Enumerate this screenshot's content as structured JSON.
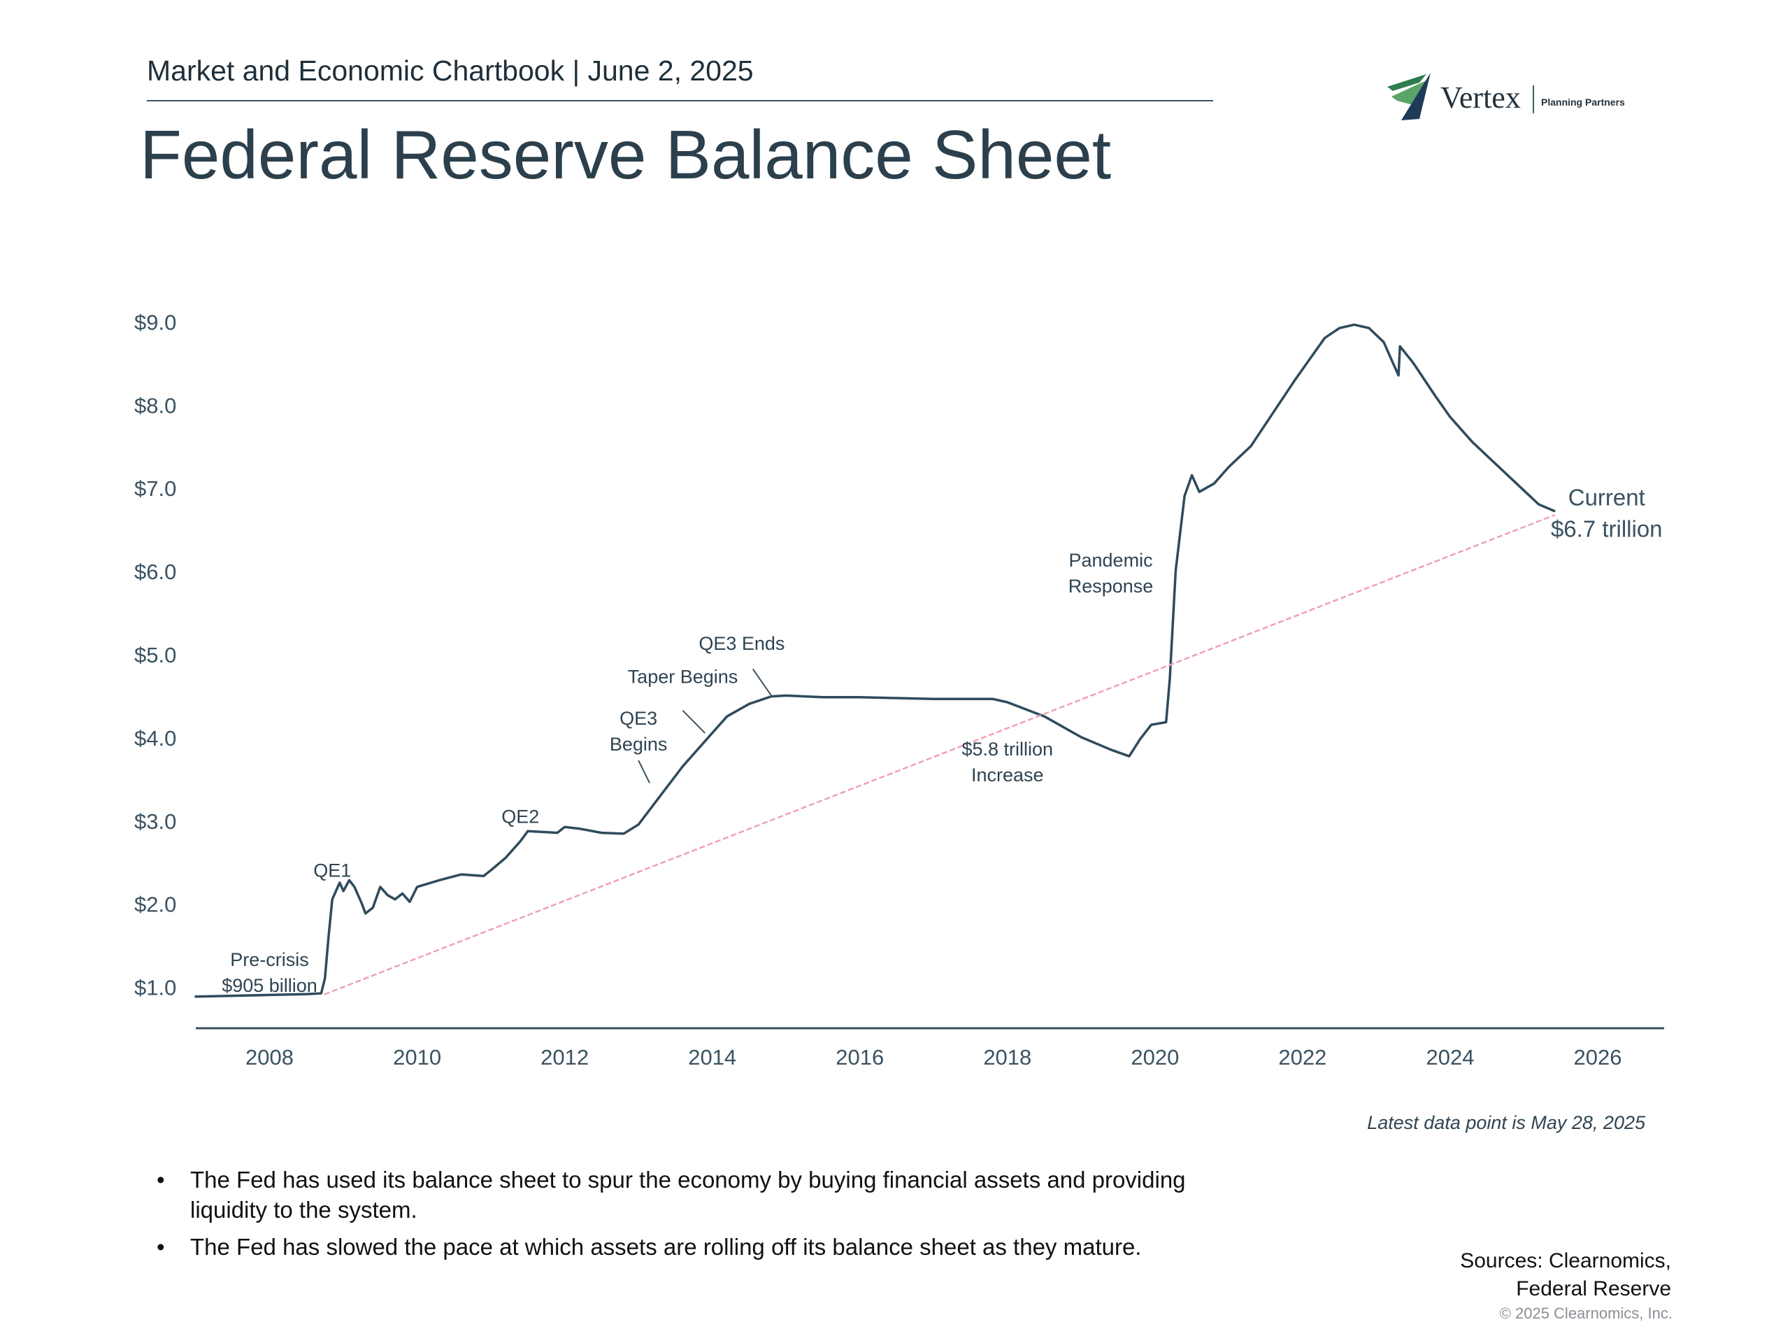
{
  "header": {
    "kicker": "Market and Economic Chartbook | June 2, 2025",
    "title": "Federal Reserve Balance Sheet"
  },
  "logo": {
    "word": "Vertex",
    "sub": "Planning Partners",
    "colors": [
      "#2e7d4f",
      "#5aa469",
      "#1f3b5a"
    ]
  },
  "chart_data": {
    "type": "line",
    "title": "",
    "xlabel": "",
    "ylabel": "",
    "xlim": [
      2007.0,
      2026.9
    ],
    "ylim": [
      0.5,
      9.5
    ],
    "y_ticks": [
      {
        "value": 1,
        "label": "$1.0"
      },
      {
        "value": 2,
        "label": "$2.0"
      },
      {
        "value": 3,
        "label": "$3.0"
      },
      {
        "value": 4,
        "label": "$4.0"
      },
      {
        "value": 5,
        "label": "$5.0"
      },
      {
        "value": 6,
        "label": "$6.0"
      },
      {
        "value": 7,
        "label": "$7.0"
      },
      {
        "value": 8,
        "label": "$8.0"
      },
      {
        "value": 9,
        "label": "$9.0"
      }
    ],
    "x_ticks": [
      {
        "value": 2008,
        "label": "2008"
      },
      {
        "value": 2010,
        "label": "2010"
      },
      {
        "value": 2012,
        "label": "2012"
      },
      {
        "value": 2014,
        "label": "2014"
      },
      {
        "value": 2016,
        "label": "2016"
      },
      {
        "value": 2018,
        "label": "2018"
      },
      {
        "value": 2020,
        "label": "2020"
      },
      {
        "value": 2022,
        "label": "2022"
      },
      {
        "value": 2024,
        "label": "2024"
      },
      {
        "value": 2026,
        "label": "2026"
      }
    ],
    "grid": false,
    "series": [
      {
        "color": "#2f4b5c",
        "points": [
          [
            2007.0,
            0.88
          ],
          [
            2007.5,
            0.89
          ],
          [
            2008.0,
            0.9
          ],
          [
            2008.5,
            0.91
          ],
          [
            2008.7,
            0.92
          ],
          [
            2008.75,
            1.1
          ],
          [
            2008.8,
            1.6
          ],
          [
            2008.85,
            2.05
          ],
          [
            2008.95,
            2.25
          ],
          [
            2009.0,
            2.15
          ],
          [
            2009.08,
            2.28
          ],
          [
            2009.15,
            2.2
          ],
          [
            2009.25,
            2.0
          ],
          [
            2009.3,
            1.88
          ],
          [
            2009.4,
            1.95
          ],
          [
            2009.5,
            2.2
          ],
          [
            2009.6,
            2.1
          ],
          [
            2009.7,
            2.05
          ],
          [
            2009.8,
            2.12
          ],
          [
            2009.9,
            2.02
          ],
          [
            2010.0,
            2.2
          ],
          [
            2010.3,
            2.28
          ],
          [
            2010.6,
            2.35
          ],
          [
            2010.9,
            2.33
          ],
          [
            2011.0,
            2.4
          ],
          [
            2011.2,
            2.55
          ],
          [
            2011.4,
            2.75
          ],
          [
            2011.5,
            2.87
          ],
          [
            2011.7,
            2.86
          ],
          [
            2011.9,
            2.85
          ],
          [
            2012.0,
            2.92
          ],
          [
            2012.2,
            2.9
          ],
          [
            2012.5,
            2.85
          ],
          [
            2012.8,
            2.84
          ],
          [
            2013.0,
            2.95
          ],
          [
            2013.3,
            3.3
          ],
          [
            2013.6,
            3.65
          ],
          [
            2013.9,
            3.95
          ],
          [
            2014.2,
            4.25
          ],
          [
            2014.5,
            4.4
          ],
          [
            2014.8,
            4.49
          ],
          [
            2015.0,
            4.5
          ],
          [
            2015.5,
            4.48
          ],
          [
            2016.0,
            4.48
          ],
          [
            2016.5,
            4.47
          ],
          [
            2017.0,
            4.46
          ],
          [
            2017.5,
            4.46
          ],
          [
            2017.8,
            4.46
          ],
          [
            2018.0,
            4.42
          ],
          [
            2018.5,
            4.25
          ],
          [
            2019.0,
            4.0
          ],
          [
            2019.4,
            3.85
          ],
          [
            2019.65,
            3.77
          ],
          [
            2019.8,
            3.98
          ],
          [
            2019.95,
            4.15
          ],
          [
            2020.15,
            4.18
          ],
          [
            2020.2,
            4.7
          ],
          [
            2020.28,
            6.0
          ],
          [
            2020.4,
            6.9
          ],
          [
            2020.5,
            7.15
          ],
          [
            2020.6,
            6.95
          ],
          [
            2020.8,
            7.05
          ],
          [
            2021.0,
            7.25
          ],
          [
            2021.3,
            7.5
          ],
          [
            2021.6,
            7.9
          ],
          [
            2021.9,
            8.3
          ],
          [
            2022.1,
            8.55
          ],
          [
            2022.3,
            8.8
          ],
          [
            2022.5,
            8.92
          ],
          [
            2022.7,
            8.96
          ],
          [
            2022.9,
            8.92
          ],
          [
            2023.1,
            8.75
          ],
          [
            2023.2,
            8.55
          ],
          [
            2023.3,
            8.35
          ],
          [
            2023.32,
            8.7
          ],
          [
            2023.5,
            8.5
          ],
          [
            2023.8,
            8.1
          ],
          [
            2024.0,
            7.85
          ],
          [
            2024.3,
            7.55
          ],
          [
            2024.6,
            7.3
          ],
          [
            2024.9,
            7.05
          ],
          [
            2025.2,
            6.8
          ],
          [
            2025.41,
            6.72
          ]
        ]
      },
      {
        "color": "#f0a0b4",
        "style": "dotted",
        "points": [
          [
            2008.75,
            0.91
          ],
          [
            2025.41,
            6.67
          ]
        ]
      }
    ],
    "annotations": [
      {
        "text": [
          "Pre-crisis",
          "$905 billion"
        ],
        "x": 2008.0,
        "y": 1.25
      },
      {
        "text": [
          "QE1"
        ],
        "x": 2008.85,
        "y": 2.32
      },
      {
        "text": [
          "QE2"
        ],
        "x": 2011.4,
        "y": 2.97
      },
      {
        "text": [
          "QE3",
          "Begins"
        ],
        "x": 2013.0,
        "y": 4.15
      },
      {
        "text": [
          "Taper Begins"
        ],
        "x": 2013.6,
        "y": 4.65
      },
      {
        "text": [
          "QE3 Ends"
        ],
        "x": 2014.4,
        "y": 5.05
      },
      {
        "text": [
          "$5.8 trillion",
          "Increase"
        ],
        "x": 2018.0,
        "y": 3.78
      },
      {
        "text": [
          "Pandemic",
          "Response"
        ],
        "x": 2019.4,
        "y": 6.05
      }
    ],
    "current_label": [
      "Current",
      "$6.7 trillion"
    ]
  },
  "footnote": "Latest data point is May 28, 2025",
  "bullets": [
    "The Fed has used its balance sheet to spur the economy by buying financial assets and providing liquidity to the system.",
    "The Fed has slowed the pace at which assets are rolling off its balance sheet as they mature."
  ],
  "sources": [
    "Sources: Clearnomics,",
    "Federal Reserve"
  ],
  "copyright": "© 2025 Clearnomics, Inc."
}
